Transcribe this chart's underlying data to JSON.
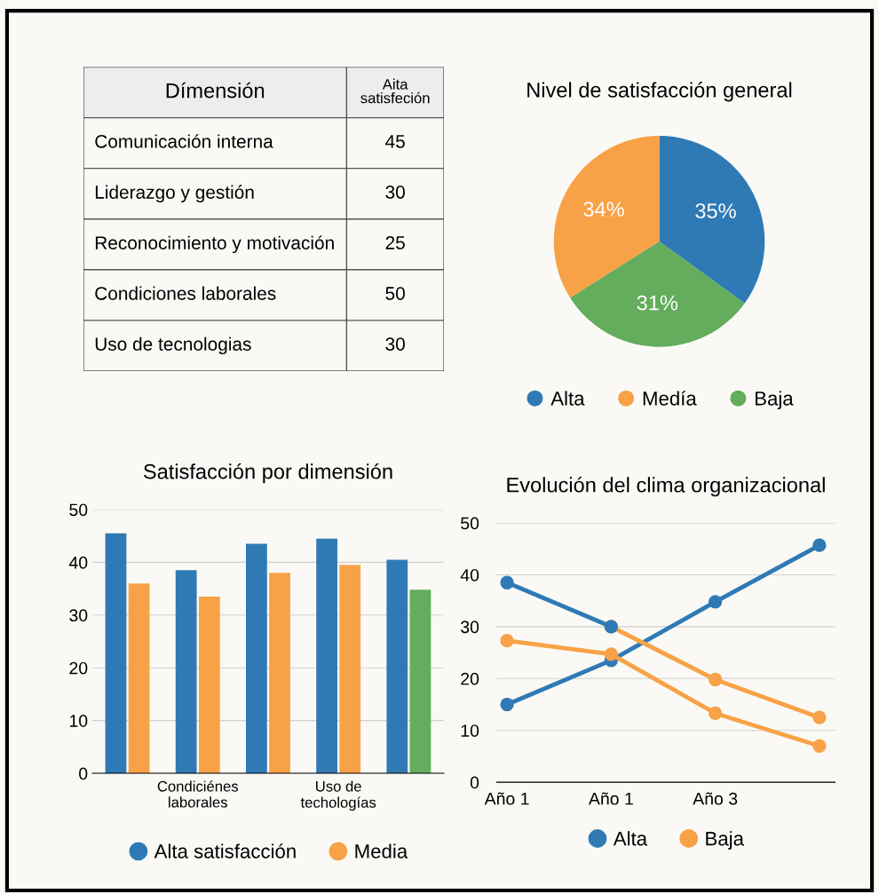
{
  "chart_data": [
    {
      "type": "other",
      "annotations": [
        "Dímensión",
        "Aita\nsatisfeción"
      ],
      "categories": [
        "Comunicación interna",
        "Liderazgo y gestión",
        "Reconocimiento y motivación",
        "Condiciones laborales",
        "Uso de tecnologias"
      ],
      "values": [
        45,
        30,
        25,
        50,
        30
      ],
      "data_labels": true
    },
    {
      "type": "pie",
      "title": "Nivel de satisfacción general",
      "categories": [
        "Alta",
        "Medía",
        "Baja"
      ],
      "values": [
        35,
        34,
        31
      ],
      "colors": [
        "#2f7ab5",
        "#f8a247",
        "#63ad5c"
      ],
      "value_labels": [
        "35%",
        "34%",
        "31%"
      ],
      "legend": "bottom"
    },
    {
      "type": "bar",
      "title": "Satisfacción por dimensión",
      "categories": [
        null,
        "Condiciénes\nlaborales",
        null,
        "Uso de\ntechologías",
        null
      ],
      "series": [
        {
          "name": "Alta satisfacción",
          "color": "#2f7ab5",
          "values": [
            45.5,
            38.5,
            43.5,
            44.5,
            40.5
          ]
        },
        {
          "name": "Media",
          "color": "#f8a247",
          "colors": [
            "#f8a247",
            "#f8a247",
            "#f8a247",
            "#f8a247",
            "#63ad5c"
          ],
          "values": [
            36,
            33.5,
            38,
            39.5,
            34.8
          ]
        }
      ],
      "ylim": [
        0,
        50
      ],
      "yticks": [
        0,
        10,
        20,
        30,
        40,
        50
      ],
      "grid": "y",
      "legend": "bottom"
    },
    {
      "type": "line",
      "title": "Evolución del clima organizacional",
      "categories": [
        "Año 1",
        "Año 1",
        "Año 3",
        null
      ],
      "series": [
        {
          "name": "Alta",
          "color": "#2f7ab5",
          "values": [
            15,
            23.5,
            34.8,
            45.7
          ]
        },
        {
          "name": "Baja",
          "color": "#f8a247",
          "values": [
            27.3,
            24.7,
            13.3,
            7
          ]
        },
        {
          "color": "#f8a247",
          "values": [
            null,
            30,
            19.8,
            12.5
          ]
        },
        {
          "color": "#2f7ab5",
          "values": [
            38.5,
            30,
            null,
            null
          ]
        }
      ],
      "ylim": [
        0,
        50
      ],
      "yticks": [
        0,
        10,
        20,
        30,
        40,
        50
      ],
      "grid": "y",
      "legend": "bottom",
      "marker": "circle",
      "line_style": "solid"
    }
  ]
}
